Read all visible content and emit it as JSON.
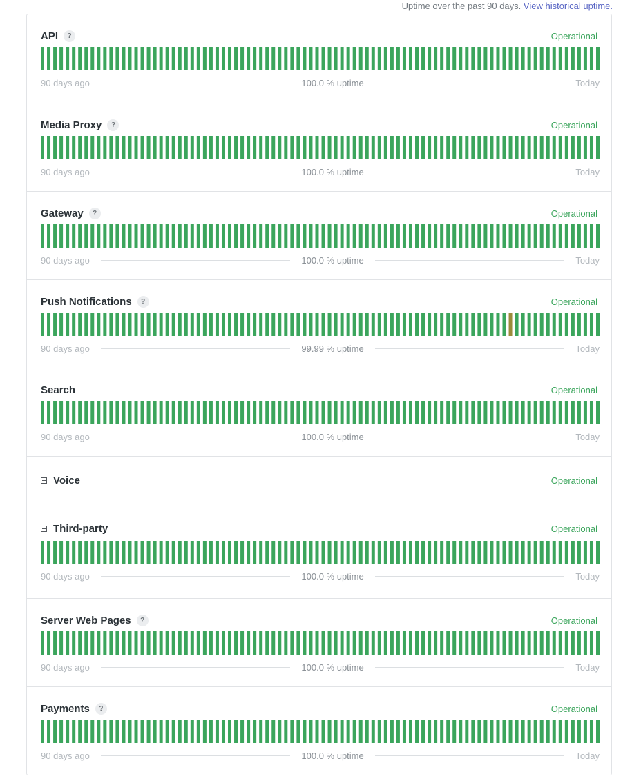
{
  "header": {
    "note": "Uptime over the past 90 days.",
    "link": "View historical uptime."
  },
  "colors": {
    "operational": "#3ba55c",
    "degraded": "#9a8b3a"
  },
  "legend": {
    "start": "90 days ago",
    "end": "Today"
  },
  "components": [
    {
      "name": "API",
      "status": "Operational",
      "uptime": "100.0 % uptime",
      "help": "?",
      "expandable": false,
      "has_bars": true,
      "degraded_days": []
    },
    {
      "name": "Media Proxy",
      "status": "Operational",
      "uptime": "100.0 % uptime",
      "help": "?",
      "expandable": false,
      "has_bars": true,
      "degraded_days": []
    },
    {
      "name": "Gateway",
      "status": "Operational",
      "uptime": "100.0 % uptime",
      "help": "?",
      "expandable": false,
      "has_bars": true,
      "degraded_days": []
    },
    {
      "name": "Push Notifications",
      "status": "Operational",
      "uptime": "99.99 % uptime",
      "help": "?",
      "expandable": false,
      "has_bars": true,
      "degraded_days": [
        75
      ]
    },
    {
      "name": "Search",
      "status": "Operational",
      "uptime": "100.0 % uptime",
      "help": "",
      "expandable": false,
      "has_bars": true,
      "degraded_days": []
    },
    {
      "name": "Voice",
      "status": "Operational",
      "uptime": "",
      "help": "",
      "expandable": true,
      "has_bars": false,
      "degraded_days": []
    },
    {
      "name": "Third-party",
      "status": "Operational",
      "uptime": "100.0 % uptime",
      "help": "",
      "expandable": true,
      "has_bars": true,
      "degraded_days": []
    },
    {
      "name": "Server Web Pages",
      "status": "Operational",
      "uptime": "100.0 % uptime",
      "help": "?",
      "expandable": false,
      "has_bars": true,
      "degraded_days": []
    },
    {
      "name": "Payments",
      "status": "Operational",
      "uptime": "100.0 % uptime",
      "help": "?",
      "expandable": false,
      "has_bars": true,
      "degraded_days": []
    }
  ]
}
